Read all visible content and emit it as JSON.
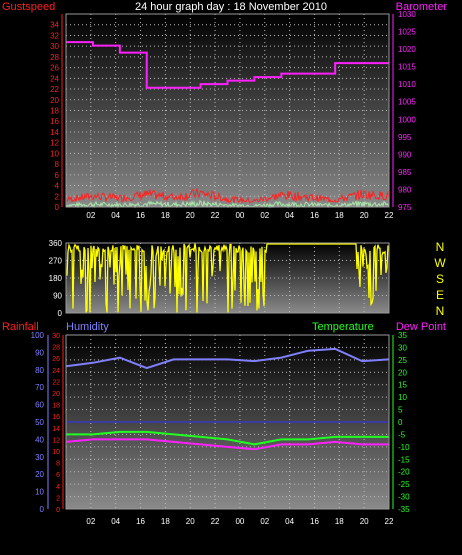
{
  "title": "24 hour graph day : 18 November 2010",
  "colors": {
    "gust": "#ff2020",
    "wind": "#a8e8a8",
    "baro": "#ff20ff",
    "dir": "#ffff00",
    "humidity": "#8080ff",
    "temperature": "#20ff20",
    "dewpoint": "#ff20ff",
    "rain": "#ff2020",
    "dirlabels": "#ffff00"
  },
  "chart_data": [
    {
      "type": "line",
      "title": "24 hour graph day : 18 November 2010",
      "x": [
        "02",
        "04",
        "16",
        "18",
        "20",
        "22",
        "00",
        "02",
        "04",
        "16",
        "18",
        "20",
        "22"
      ],
      "series": [
        {
          "name": "Gustspeed",
          "axis": "left",
          "ylim": [
            0,
            36
          ],
          "ticks": [
            0,
            2,
            4,
            6,
            8,
            10,
            12,
            14,
            16,
            18,
            20,
            22,
            24,
            26,
            28,
            30,
            32,
            34
          ],
          "values": [
            1.5,
            2.2,
            1.8,
            2.5,
            2.0,
            2.8,
            1.6,
            1.2,
            2.4,
            2.0,
            1.4,
            2.6,
            2.2
          ]
        },
        {
          "name": "Barometer",
          "axis": "right",
          "ylim": [
            975,
            1030
          ],
          "ticks": [
            975,
            980,
            985,
            990,
            995,
            1000,
            1005,
            1010,
            1015,
            1020,
            1025,
            1030
          ],
          "values": [
            1022,
            1021,
            1019,
            1009,
            1009,
            1010,
            1011,
            1012,
            1013,
            1013,
            1016,
            1016,
            1016
          ]
        }
      ],
      "grid": true
    },
    {
      "type": "line",
      "series": [
        {
          "name": "Wind direction",
          "ylim": [
            0,
            360
          ],
          "ticks": [
            0,
            90,
            180,
            270,
            360
          ],
          "values": [
            350,
            300,
            40,
            350,
            320,
            200,
            360,
            350,
            350,
            300,
            350,
            350,
            30
          ]
        }
      ],
      "direction_labels": [
        "N",
        "W",
        "S",
        "E",
        "N"
      ],
      "grid": true
    },
    {
      "type": "line",
      "series": [
        {
          "name": "Rainfall",
          "axis": "left",
          "ylim": [
            0,
            30
          ],
          "ticks": [
            0,
            2,
            4,
            6,
            8,
            10,
            12,
            14,
            16,
            18,
            20,
            22,
            24,
            26,
            28,
            30
          ],
          "values": [
            0,
            0,
            0,
            0,
            0,
            0,
            0,
            0,
            0,
            0,
            0,
            0,
            0
          ]
        },
        {
          "name": "Humidity",
          "axis": "left",
          "ylim": [
            0,
            100
          ],
          "ticks": [
            0,
            10,
            20,
            30,
            40,
            50,
            60,
            70,
            80,
            90,
            100
          ],
          "values": [
            82,
            84,
            87,
            81,
            86,
            86,
            86,
            85,
            87,
            91,
            92,
            85,
            86
          ]
        },
        {
          "name": "Temperature",
          "axis": "right",
          "ylim": [
            -35,
            35
          ],
          "ticks": [
            35,
            30,
            25,
            20,
            15,
            10,
            5,
            0,
            -5,
            -10,
            -15,
            -20,
            -25,
            -30,
            -35
          ],
          "values": [
            -5,
            -5,
            -4,
            -4,
            -5,
            -6,
            -7,
            -9,
            -7,
            -7,
            -6,
            -6,
            -6
          ]
        },
        {
          "name": "Dew Point",
          "axis": "right",
          "ylim": [
            -35,
            35
          ],
          "values": [
            -8,
            -7,
            -7,
            -7,
            -8,
            -9,
            -10,
            -11,
            -9,
            -9,
            -8,
            -9,
            -9
          ]
        }
      ],
      "grid": true
    }
  ],
  "labels": {
    "gust": "Gustspeed",
    "baro": "Barometer",
    "rain": "Rainfall",
    "humidity": "Humidity",
    "temperature": "Temperature",
    "dewpoint": "Dew Point"
  }
}
